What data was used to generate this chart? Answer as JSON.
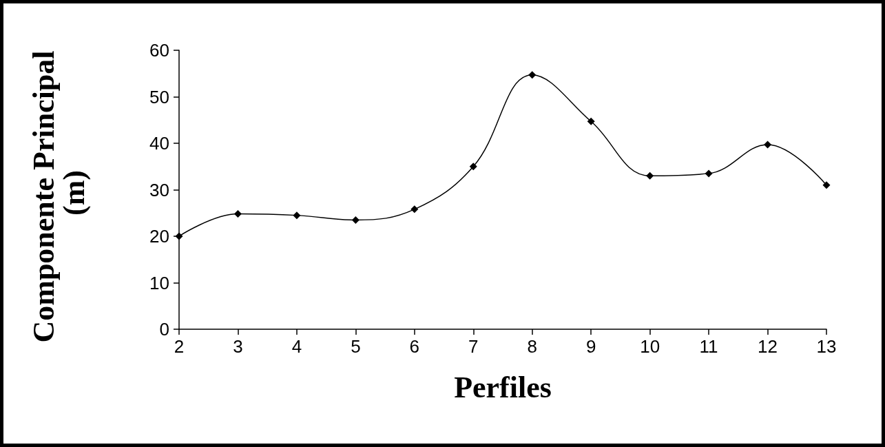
{
  "chart_data": {
    "type": "line",
    "xlabel": "Perfiles",
    "ylabel": "Componente Principal (m)",
    "categories": [
      "2",
      "3",
      "4",
      "5",
      "6",
      "7",
      "8",
      "9",
      "10",
      "11",
      "12",
      "13"
    ],
    "values": [
      20,
      24.8,
      24.5,
      23.5,
      25.8,
      35,
      54.7,
      44.7,
      33,
      33.5,
      39.7,
      31
    ],
    "color": "#000000",
    "marker": "diamond",
    "ylim": [
      0,
      60
    ],
    "yticks": [
      0,
      10,
      20,
      30,
      40,
      50,
      60
    ]
  }
}
